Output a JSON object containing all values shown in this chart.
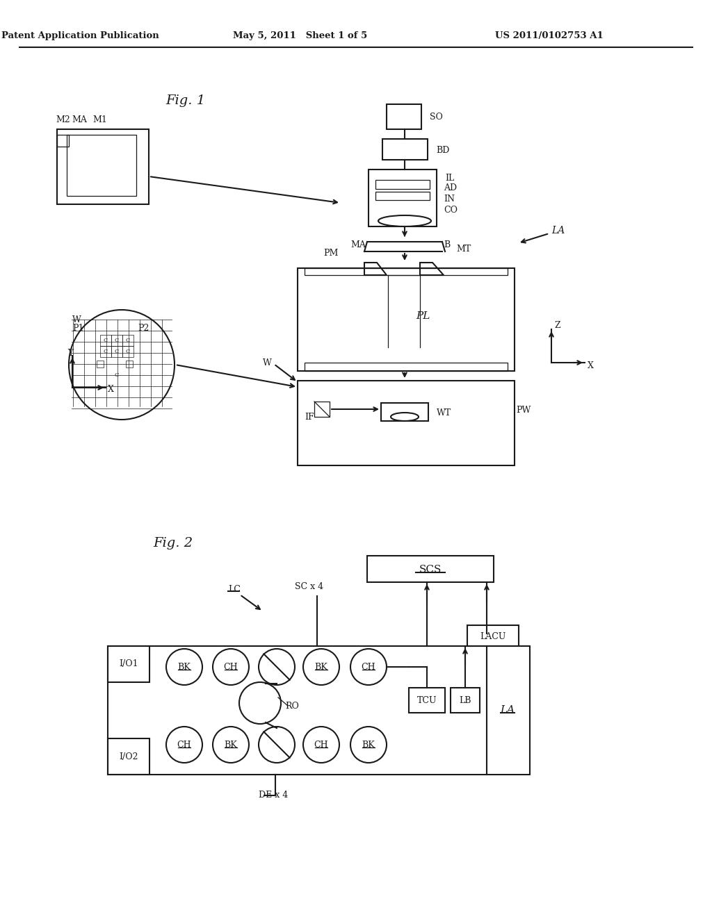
{
  "bg_color": "#ffffff",
  "lc": "#1a1a1a",
  "lw": 1.5,
  "tlw": 0.9,
  "header_left": "Patent Application Publication",
  "header_mid": "May 5, 2011   Sheet 1 of 5",
  "header_right": "US 2011/0102753 A1"
}
